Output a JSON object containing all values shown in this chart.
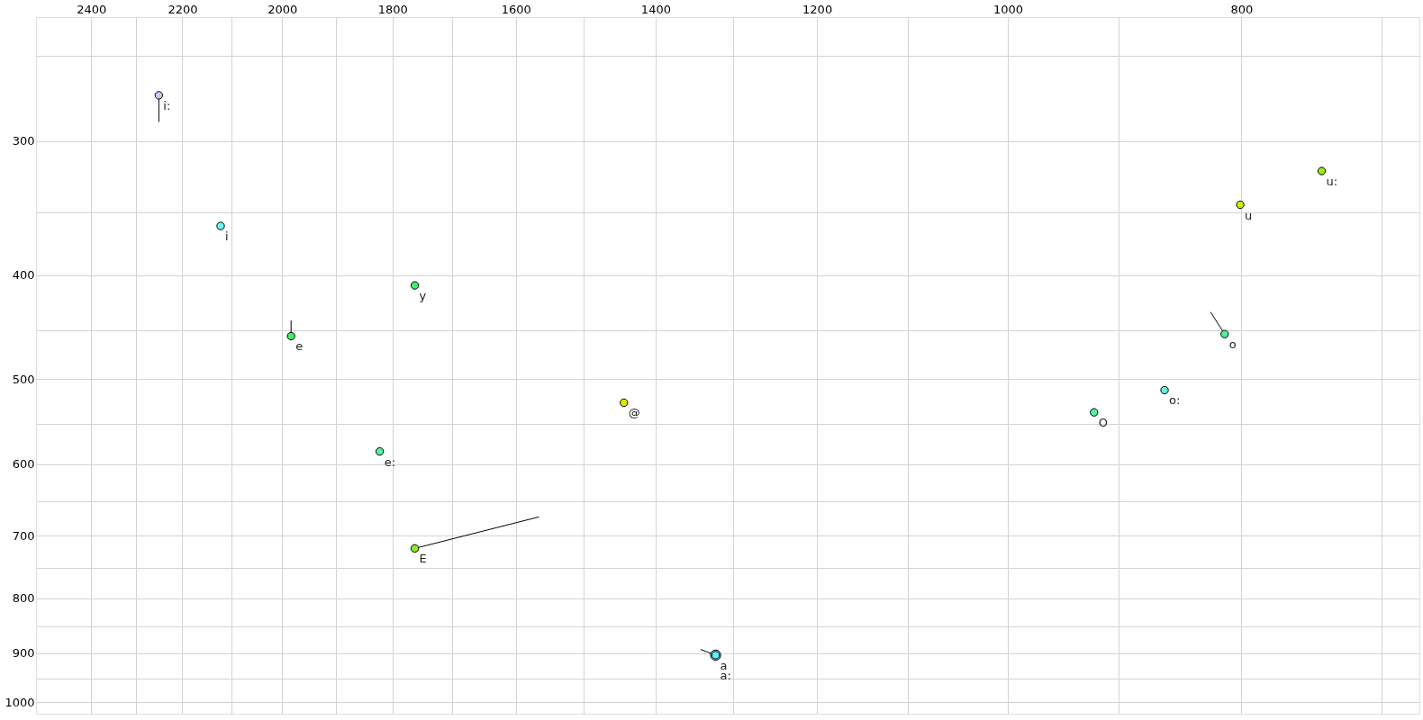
{
  "chart_data": {
    "type": "scatter",
    "log": "xy",
    "grid": true,
    "marker": "circle",
    "xlim": [
      2530,
      675
    ],
    "ylim": [
      1025,
      230
    ],
    "xticks": [
      2400,
      {
        "value": 2300,
        "label": null
      },
      2200,
      {
        "value": 2100,
        "label": null
      },
      2000,
      {
        "value": 1900,
        "label": null
      },
      1800,
      {
        "value": 1700,
        "label": null
      },
      1600,
      {
        "value": 1500,
        "label": null
      },
      1400,
      {
        "value": 1300,
        "label": null
      },
      1200,
      {
        "value": 1100,
        "label": null
      },
      1000,
      {
        "value": 900,
        "label": null
      },
      800,
      {
        "value": 700,
        "label": null
      }
    ],
    "yticks": [
      {
        "value": 250,
        "label": null
      },
      300,
      {
        "value": 350,
        "label": null
      },
      400,
      {
        "value": 450,
        "label": null
      },
      500,
      {
        "value": 550,
        "label": null
      },
      600,
      {
        "value": 650,
        "label": null
      },
      700,
      {
        "value": 750,
        "label": null
      },
      800,
      {
        "value": 850,
        "label": null
      },
      900,
      {
        "value": 950,
        "label": null
      },
      1000
    ],
    "series": [
      {
        "name": "i:",
        "color": "#c8c8f0",
        "x": [
          2250
        ],
        "values": [
          272
        ]
      },
      {
        "name": "i",
        "color": "#66ffee",
        "x": [
          2121
        ],
        "values": [
          360
        ]
      },
      {
        "name": "e",
        "color": "#44ee66",
        "x": [
          1983
        ],
        "values": [
          456
        ]
      },
      {
        "name": "y",
        "color": "#44ee66",
        "x": [
          1762
        ],
        "values": [
          409
        ]
      },
      {
        "name": "e:",
        "color": "#55eeaa",
        "x": [
          1822
        ],
        "values": [
          584
        ]
      },
      {
        "name": "E",
        "color": "#88ee22",
        "x": [
          1762
        ],
        "values": [
          719
        ]
      },
      {
        "name": "@",
        "color": "#ddee00",
        "x": [
          1443
        ],
        "values": [
          526
        ]
      },
      {
        "name": "a",
        "color": "#66eeff",
        "x": [
          1322
        ],
        "values": [
          904
        ]
      },
      {
        "name": "a:",
        "color": "#66eeff",
        "x": [
          1322
        ],
        "values": [
          904
        ]
      },
      {
        "name": "O",
        "color": "#55eeaa",
        "x": [
          921
        ],
        "values": [
          537
        ]
      },
      {
        "name": "o:",
        "color": "#66eedd",
        "x": [
          861
        ],
        "values": [
          512
        ]
      },
      {
        "name": "o",
        "color": "#55ee99",
        "x": [
          813
        ],
        "values": [
          454
        ]
      },
      {
        "name": "u",
        "color": "#ccee00",
        "x": [
          801
        ],
        "values": [
          344
        ]
      },
      {
        "name": "u:",
        "color": "#99ee11",
        "x": [
          741
        ],
        "values": [
          320
        ]
      },
      {
        "type": "line",
        "marker": "none",
        "line_style": "solid",
        "color": "#000000",
        "x": [
          2250,
          2250
        ],
        "values": [
          272,
          288
        ]
      },
      {
        "type": "line",
        "marker": "none",
        "line_style": "solid",
        "color": "#000000",
        "x": [
          1983,
          1983
        ],
        "values": [
          456,
          441
        ]
      },
      {
        "type": "line",
        "marker": "none",
        "line_style": "solid",
        "color": "#000000",
        "x": [
          1762,
          1565
        ],
        "values": [
          719,
          672
        ]
      },
      {
        "type": "line",
        "marker": "none",
        "line_style": "solid",
        "color": "#000000",
        "x": [
          1322,
          1341
        ],
        "values": [
          904,
          893
        ]
      },
      {
        "type": "line",
        "marker": "none",
        "line_style": "solid",
        "color": "#000000",
        "x": [
          813,
          824
        ],
        "values": [
          454,
          433
        ]
      }
    ]
  }
}
